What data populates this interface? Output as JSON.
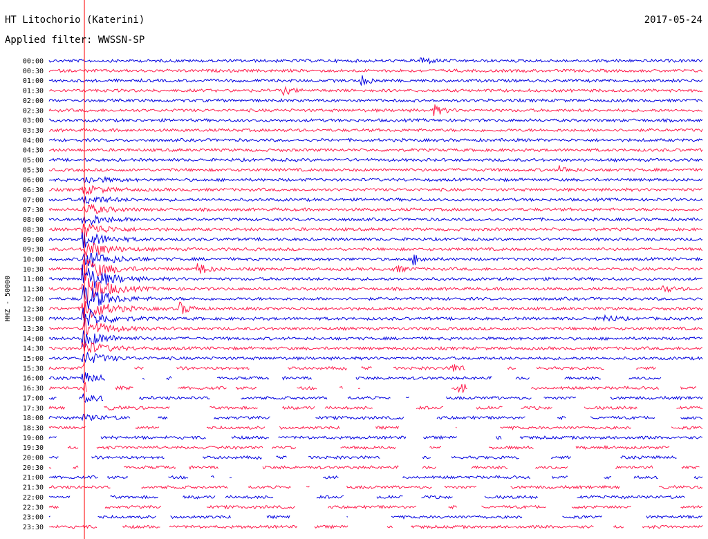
{
  "header": {
    "station": "HT Litochorio (Katerini)",
    "date": "2017-05-24",
    "filter_label": "Applied filter: WWSSN-SP"
  },
  "axis_label": "HHZ - 50000",
  "colors": {
    "odd": "#0000e0",
    "even": "#ff1a4a",
    "marker": "#ff0000"
  },
  "chart_data": {
    "type": "line",
    "title": "HT Litochorio (Katerini)",
    "ylabel": "HHZ - 50000",
    "row_labels": [
      "00:00",
      "00:30",
      "01:00",
      "01:30",
      "02:00",
      "02:30",
      "03:00",
      "03:30",
      "04:00",
      "04:30",
      "05:00",
      "05:30",
      "06:00",
      "06:30",
      "07:00",
      "07:30",
      "08:00",
      "08:30",
      "09:00",
      "09:30",
      "10:00",
      "10:30",
      "11:00",
      "11:30",
      "12:00",
      "12:30",
      "13:00",
      "13:30",
      "14:00",
      "14:30",
      "15:00",
      "15:30",
      "16:00",
      "16:30",
      "17:00",
      "17:30",
      "18:00",
      "18:30",
      "19:00",
      "19:30",
      "20:00",
      "20:30",
      "21:00",
      "21:30",
      "22:00",
      "22:30",
      "23:00",
      "23:30"
    ],
    "marker_time_fraction": 0.054,
    "events": [
      {
        "row": 0,
        "t": 0.57,
        "amp": 6
      },
      {
        "row": 2,
        "t": 0.48,
        "amp": 6
      },
      {
        "row": 3,
        "t": 0.36,
        "amp": 5
      },
      {
        "row": 5,
        "t": 0.59,
        "amp": 7
      },
      {
        "row": 11,
        "t": 0.78,
        "amp": 5
      },
      {
        "row": 20,
        "t": 0.56,
        "amp": 7
      },
      {
        "row": 21,
        "t": 0.23,
        "amp": 8
      },
      {
        "row": 21,
        "t": 0.53,
        "amp": 5
      },
      {
        "row": 23,
        "t": 0.94,
        "amp": 5
      },
      {
        "row": 25,
        "t": 0.2,
        "amp": 9
      },
      {
        "row": 26,
        "t": 0.85,
        "amp": 6
      },
      {
        "row": 31,
        "t": 0.62,
        "amp": 6
      },
      {
        "row": 33,
        "t": 0.63,
        "amp": 7
      },
      {
        "row": 38,
        "t": 0.67,
        "amp": 5
      }
    ]
  }
}
